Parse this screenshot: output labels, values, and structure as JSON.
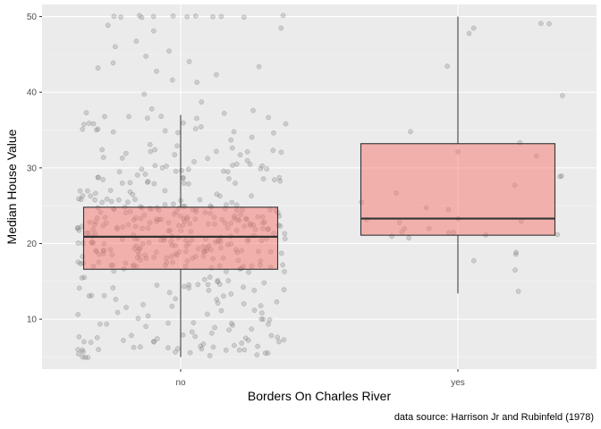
{
  "chart_data": {
    "type": "boxplot",
    "xlabel": "Borders On Charles River",
    "ylabel": "Median House Value",
    "caption": "data source: Harrison Jr and Rubinfeld (1978)",
    "categories": [
      "no",
      "yes"
    ],
    "ylim": [
      3.4,
      51.6
    ],
    "yticks": [
      10,
      20,
      30,
      40,
      50
    ],
    "grid": true,
    "box_fill": "#f8766d",
    "box_alpha": 0.5,
    "point_color": "#7f7f7f",
    "panel_background": "#ebebeb",
    "boxes": [
      {
        "category": "no",
        "min": 5.0,
        "q1": 16.6,
        "median": 20.9,
        "q3": 24.8,
        "max": 37.0,
        "n": 471
      },
      {
        "category": "yes",
        "min": 13.4,
        "q1": 21.1,
        "median": 23.3,
        "q3": 33.2,
        "max": 50.0,
        "n": 35
      }
    ],
    "outliers": [
      {
        "category": "no",
        "values": [
          37.2,
          37.3,
          37.6,
          37.9,
          38.7,
          39.8,
          41.3,
          41.7,
          42.3,
          42.8,
          43.1,
          43.5,
          43.8,
          44.0,
          44.8,
          45.4,
          46.0,
          46.7,
          48.3,
          48.5,
          48.8,
          50.0,
          50.0,
          50.0,
          50.0,
          50.0,
          50.0,
          50.0,
          50.0,
          50.0,
          50.0,
          50.0,
          50.0
        ]
      },
      {
        "category": "yes",
        "values": []
      }
    ]
  }
}
